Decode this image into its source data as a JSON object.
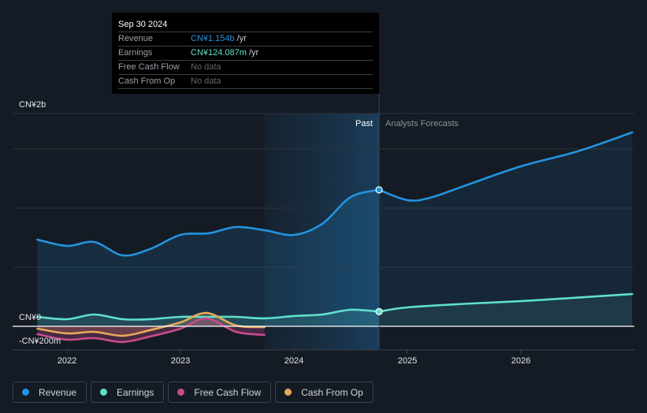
{
  "tooltip": {
    "date": "Sep 30 2024",
    "rows": [
      {
        "label": "Revenue",
        "value": "CN¥1.154b",
        "unit": "/yr",
        "color": "#2394df"
      },
      {
        "label": "Earnings",
        "value": "CN¥124.087m",
        "unit": "/yr",
        "color": "#5fe0cc"
      },
      {
        "label": "Free Cash Flow",
        "value": "No data",
        "unit": ""
      },
      {
        "label": "Cash From Op",
        "value": "No data",
        "unit": ""
      }
    ]
  },
  "period_labels": {
    "past": "Past",
    "forecast": "Analysts Forecasts"
  },
  "legend": [
    {
      "label": "Revenue",
      "color": "#2394df"
    },
    {
      "label": "Earnings",
      "color": "#5fe0cc"
    },
    {
      "label": "Free Cash Flow",
      "color": "#c84b8e"
    },
    {
      "label": "Cash From Op",
      "color": "#e6a85a"
    }
  ],
  "chart_data": {
    "type": "line",
    "title": "",
    "xlabel": "",
    "ylabel": "",
    "currency": "CN¥",
    "y_unit": "millions",
    "ylim": [
      -200,
      1800
    ],
    "xlim": [
      2021.48,
      2026.98
    ],
    "y_tick_labels": [
      {
        "value": 2000,
        "label": "CN¥2b"
      },
      {
        "value": 0,
        "label": "CN¥0"
      },
      {
        "value": -200,
        "label": "-CN¥200m"
      }
    ],
    "y_gridlines": [
      1800,
      1500,
      1000,
      500,
      0,
      -200
    ],
    "x_ticks": [
      {
        "value": 2022,
        "label": "2022"
      },
      {
        "value": 2023,
        "label": "2023"
      },
      {
        "value": 2024,
        "label": "2024"
      },
      {
        "value": 2025,
        "label": "2025"
      },
      {
        "value": 2026,
        "label": "2026"
      }
    ],
    "highlight_region": {
      "from": 2023.74,
      "to": 2024.75,
      "label": "Past"
    },
    "marker_x": 2024.75,
    "grid": true,
    "legend_position": "bottom-left",
    "series": [
      {
        "name": "Revenue",
        "color": "#2394df",
        "area": true,
        "points": [
          [
            2021.74,
            733
          ],
          [
            2022.0,
            680
          ],
          [
            2022.24,
            713
          ],
          [
            2022.49,
            600
          ],
          [
            2022.73,
            653
          ],
          [
            2023.0,
            773
          ],
          [
            2023.25,
            787
          ],
          [
            2023.49,
            840
          ],
          [
            2023.74,
            813
          ],
          [
            2024.0,
            773
          ],
          [
            2024.25,
            867
          ],
          [
            2024.5,
            1093
          ],
          [
            2024.75,
            1154
          ]
        ],
        "forecast": [
          [
            2024.75,
            1154
          ],
          [
            2025.0,
            1067
          ],
          [
            2025.2,
            1087
          ],
          [
            2025.5,
            1187
          ],
          [
            2026.0,
            1353
          ],
          [
            2026.5,
            1480
          ],
          [
            2026.98,
            1640
          ]
        ]
      },
      {
        "name": "Earnings",
        "color": "#5fe0cc",
        "area": true,
        "points": [
          [
            2021.74,
            80
          ],
          [
            2022.0,
            60
          ],
          [
            2022.24,
            100
          ],
          [
            2022.49,
            60
          ],
          [
            2022.73,
            60
          ],
          [
            2023.0,
            80
          ],
          [
            2023.25,
            80
          ],
          [
            2023.49,
            80
          ],
          [
            2023.74,
            67
          ],
          [
            2024.0,
            87
          ],
          [
            2024.25,
            100
          ],
          [
            2024.5,
            140
          ],
          [
            2024.75,
            124
          ]
        ],
        "forecast": [
          [
            2024.75,
            124
          ],
          [
            2025.0,
            160
          ],
          [
            2025.5,
            190
          ],
          [
            2026.0,
            213
          ],
          [
            2026.5,
            243
          ],
          [
            2026.98,
            273
          ]
        ]
      },
      {
        "name": "Free Cash Flow",
        "color": "#c84b8e",
        "area": true,
        "points": [
          [
            2021.74,
            -67
          ],
          [
            2022.0,
            -113
          ],
          [
            2022.24,
            -100
          ],
          [
            2022.49,
            -133
          ],
          [
            2022.73,
            -87
          ],
          [
            2023.0,
            -20
          ],
          [
            2023.23,
            67
          ],
          [
            2023.49,
            -47
          ],
          [
            2023.74,
            -73
          ]
        ],
        "forecast": []
      },
      {
        "name": "Cash From Op",
        "color": "#e6a85a",
        "area": true,
        "points": [
          [
            2021.74,
            -20
          ],
          [
            2022.0,
            -60
          ],
          [
            2022.24,
            -47
          ],
          [
            2022.49,
            -80
          ],
          [
            2022.73,
            -33
          ],
          [
            2023.0,
            33
          ],
          [
            2023.23,
            113
          ],
          [
            2023.49,
            7
          ],
          [
            2023.74,
            -7
          ]
        ],
        "forecast": []
      }
    ]
  }
}
